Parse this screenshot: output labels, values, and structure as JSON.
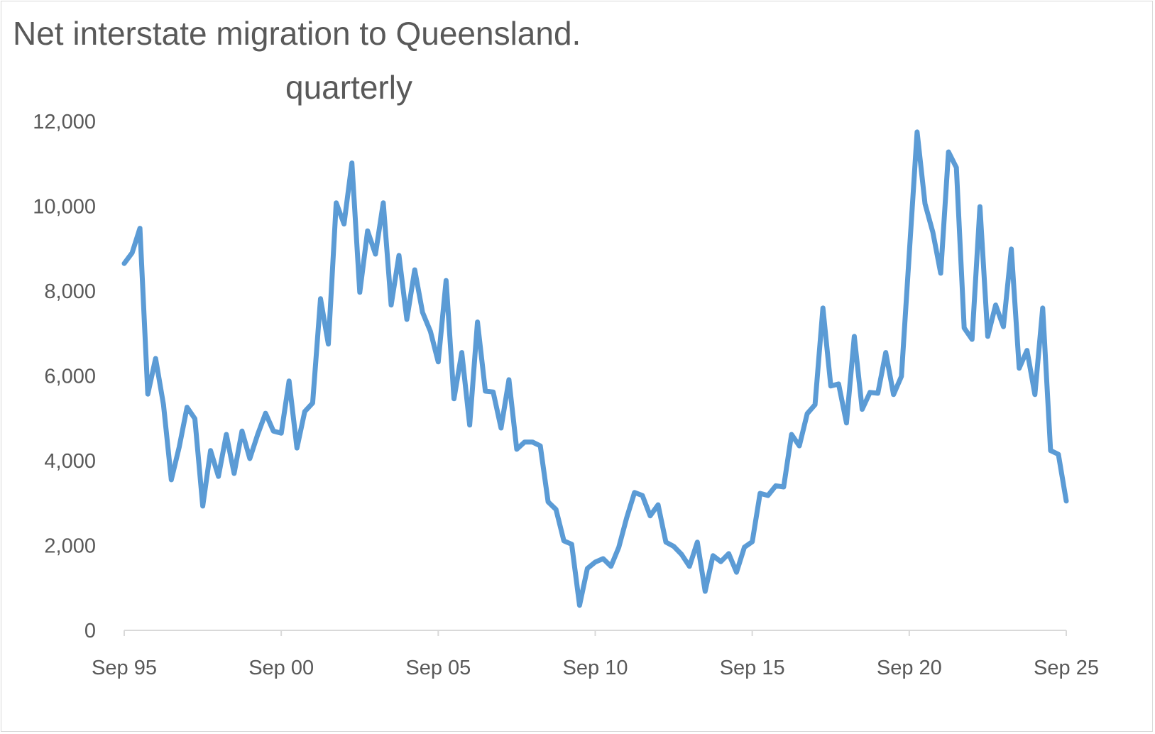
{
  "chart_data": {
    "type": "line",
    "title": "Net interstate migration to Queensland.",
    "subtitle": "quarterly",
    "xlabel": "",
    "ylabel": "",
    "ylim": [
      0,
      12000
    ],
    "yticks": [
      "0",
      "2,000",
      "4,000",
      "6,000",
      "8,000",
      "10,000",
      "12,000"
    ],
    "ytick_values": [
      0,
      2000,
      4000,
      6000,
      8000,
      10000,
      12000
    ],
    "xticks": [
      "Sep 95",
      "Sep 00",
      "Sep 05",
      "Sep 10",
      "Sep 15",
      "Sep 20",
      "Sep 25"
    ],
    "xtick_quarter_index": [
      0,
      20,
      40,
      60,
      80,
      100,
      120
    ],
    "x_start": "Sep 95",
    "x_end": "Sep 25",
    "grid": false,
    "legend": "none",
    "series_color": "#5b9bd5",
    "series": [
      {
        "name": "Net interstate migration to Queensland",
        "values": [
          8650,
          8900,
          9480,
          5570,
          6410,
          5320,
          3550,
          4320,
          5260,
          4990,
          2930,
          4240,
          3630,
          4620,
          3700,
          4700,
          4050,
          4620,
          5120,
          4700,
          4650,
          5880,
          4300,
          5160,
          5360,
          7820,
          6750,
          10080,
          9580,
          11020,
          7970,
          9420,
          8870,
          10080,
          7670,
          8840,
          7330,
          8500,
          7500,
          7050,
          6330,
          8250,
          5460,
          6550,
          4840,
          7270,
          5640,
          5620,
          4770,
          5910,
          4270,
          4440,
          4440,
          4350,
          3030,
          2850,
          2110,
          2030,
          590,
          1460,
          1610,
          1690,
          1510,
          1960,
          2650,
          3250,
          3180,
          2700,
          2960,
          2080,
          1980,
          1790,
          1510,
          2080,
          920,
          1760,
          1620,
          1810,
          1370,
          1960,
          2090,
          3230,
          3180,
          3410,
          3380,
          4620,
          4350,
          5110,
          5320,
          7600,
          5760,
          5810,
          4890,
          6930,
          5210,
          5610,
          5590,
          6550,
          5560,
          5990,
          8870,
          11750,
          10060,
          9390,
          8420,
          11280,
          10910,
          7130,
          6860,
          9990,
          6930,
          7670,
          7160,
          8990,
          6180,
          6600,
          5560,
          7600,
          4240,
          4150,
          3050
        ]
      }
    ]
  }
}
